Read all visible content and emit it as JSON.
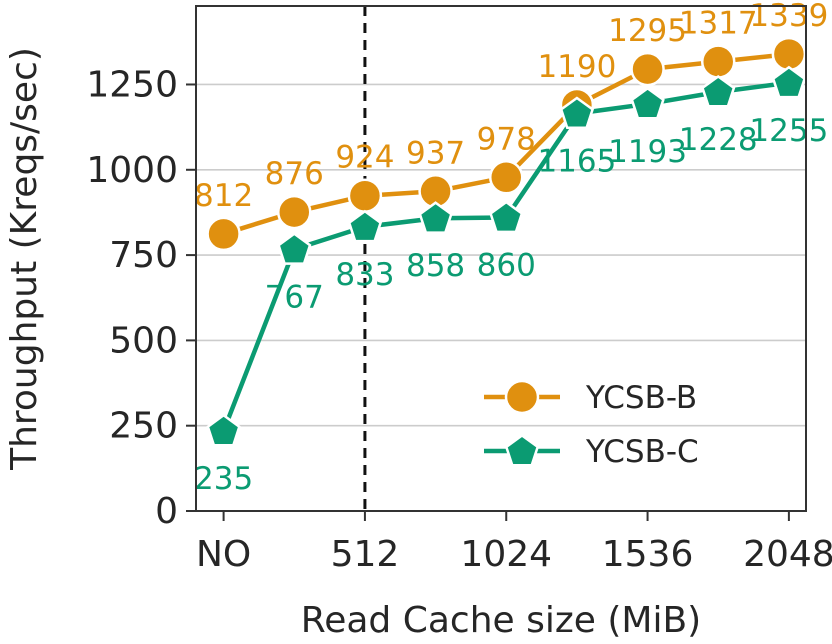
{
  "chart_data": {
    "type": "line",
    "xlabel": "Read Cache size (MiB)",
    "ylabel": "Throughput (Kreqs/sec)",
    "x": [
      0,
      256,
      512,
      768,
      1024,
      1280,
      1536,
      1792,
      2048
    ],
    "xticks": [
      0,
      512,
      1024,
      1536,
      2048
    ],
    "xtick_labels": [
      "NO",
      "512",
      "1024",
      "1536",
      "2048"
    ],
    "xlim": [
      -100,
      2110
    ],
    "ylim": [
      0,
      1480
    ],
    "yticks": [
      0,
      250,
      500,
      750,
      1000,
      1250
    ],
    "ytick_labels": [
      "0",
      "250",
      "500",
      "750",
      "1000",
      "1250"
    ],
    "grid": "horizontal",
    "vline": {
      "x": 512,
      "style": "dashed"
    },
    "legend": {
      "position": "lower-right"
    },
    "series": [
      {
        "name": "YCSB-B",
        "color": "#e0900f",
        "marker": "circle",
        "label_position": "above",
        "values": [
          812,
          876,
          924,
          937,
          978,
          1190,
          1295,
          1317,
          1339
        ],
        "labels": [
          "812",
          "876",
          "924",
          "937",
          "978",
          "1190",
          "1295",
          "1317",
          "1339"
        ]
      },
      {
        "name": "YCSB-C",
        "color": "#0b9b72",
        "marker": "pentagon",
        "label_position": "below",
        "values": [
          235,
          767,
          833,
          858,
          860,
          1165,
          1193,
          1228,
          1255
        ],
        "labels": [
          "235",
          "767",
          "833",
          "858",
          "860",
          "1165",
          "1193",
          "1228",
          "1255"
        ]
      }
    ]
  }
}
